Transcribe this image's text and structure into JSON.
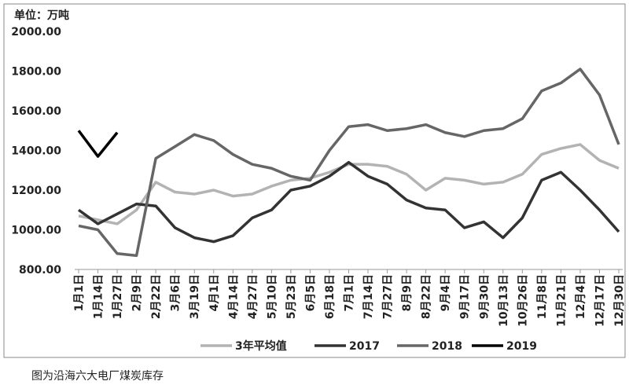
{
  "chart_data": {
    "type": "line",
    "y_label": "单位：万吨",
    "caption": "图为沿海六大电厂煤炭库存",
    "categories": [
      "1月1日",
      "1月14日",
      "1月27日",
      "2月9日",
      "2月22日",
      "3月6日",
      "3月19日",
      "4月1日",
      "4月14日",
      "4月27日",
      "5月10日",
      "5月23日",
      "6月5日",
      "6月18日",
      "7月1日",
      "7月14日",
      "7月27日",
      "8月9日",
      "8月22日",
      "9月4日",
      "9月17日",
      "9月30日",
      "10月13日",
      "10月26日",
      "11月8日",
      "11月21日",
      "12月4日",
      "12月17日",
      "12月30日"
    ],
    "series": [
      {
        "name": "3年平均值",
        "color": "#b3b3b3",
        "values": [
          1070,
          1050,
          1030,
          1100,
          1240,
          1190,
          1180,
          1200,
          1170,
          1180,
          1220,
          1250,
          1260,
          1290,
          1330,
          1330,
          1320,
          1280,
          1200,
          1260,
          1250,
          1230,
          1240,
          1280,
          1380,
          1410,
          1430,
          1350,
          1310
        ]
      },
      {
        "name": "2017",
        "color": "#333333",
        "values": [
          1100,
          1030,
          1080,
          1130,
          1120,
          1010,
          960,
          940,
          970,
          1060,
          1100,
          1200,
          1220,
          1270,
          1340,
          1270,
          1230,
          1150,
          1110,
          1100,
          1010,
          1040,
          960,
          1060,
          1250,
          1290,
          1200,
          1100,
          990
        ]
      },
      {
        "name": "2018",
        "color": "#666666",
        "values": [
          1020,
          1000,
          880,
          870,
          1360,
          1420,
          1480,
          1450,
          1380,
          1330,
          1310,
          1270,
          1250,
          1400,
          1520,
          1530,
          1500,
          1510,
          1530,
          1490,
          1470,
          1500,
          1510,
          1560,
          1700,
          1740,
          1810,
          1680,
          1430
        ]
      },
      {
        "name": "2019",
        "color": "#000000",
        "values": [
          1500,
          1370,
          1490,
          null,
          null,
          null,
          null,
          null,
          null,
          null,
          null,
          null,
          null,
          null,
          null,
          null,
          null,
          null,
          null,
          null,
          null,
          null,
          null,
          null,
          null,
          null,
          null,
          null,
          null
        ]
      }
    ],
    "ylim": [
      800,
      2000
    ],
    "yticks": [
      {
        "value": 800,
        "label": "800.00"
      },
      {
        "value": 1000,
        "label": "1000.00"
      },
      {
        "value": 1200,
        "label": "1200.00"
      },
      {
        "value": 1400,
        "label": "1400.00"
      },
      {
        "value": 1600,
        "label": "1600.00"
      },
      {
        "value": 1800,
        "label": "1800.00"
      },
      {
        "value": 2000,
        "label": "2000.00"
      }
    ],
    "legend": "bottom"
  }
}
